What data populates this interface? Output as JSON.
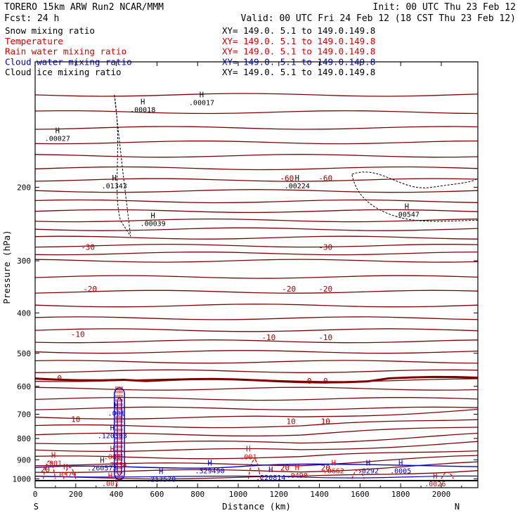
{
  "header": {
    "run_line": "TORERO  15km ARW   Run2    NCAR/MMM",
    "init_line": "Init: 00 UTC Thu 23 Feb 12",
    "fcst_line": "Fcst:    24 h",
    "valid_line": "Valid: 00 UTC Fri 24 Feb 12 (18 CST Thu 23 Feb 12)"
  },
  "legend": [
    {
      "name": "Snow mixing ratio",
      "color": "#000000",
      "xy": "XY= 149.0.   5.1 to 149.0.149.8"
    },
    {
      "name": "Temperature",
      "color": "#d00000",
      "xy": "XY= 149.0.   5.1 to 149.0.149.8"
    },
    {
      "name": "Rain water mixing ratio",
      "color": "#d00000",
      "xy": "XY= 149.0.   5.1 to 149.0.149.8"
    },
    {
      "name": "Cloud water mixing ratio",
      "color": "#0000c0",
      "xy": "XY= 149.0.   5.1 to 149.0.149.8"
    },
    {
      "name": "Cloud ice mixing ratio",
      "color": "#000000",
      "xy": "XY= 149.0.   5.1 to 149.0.149.8"
    }
  ],
  "colors": {
    "temperature": "#800000",
    "temperature_label": "#a00000",
    "rain": "#e00000",
    "cloud_water": "#0000c8",
    "snow": "#000000",
    "axis": "#000000"
  },
  "chart_data": {
    "type": "contour cross-section",
    "xlabel": "Distance (km)",
    "ylabel": "Pressure (hPa)",
    "xlim": [
      0,
      2180
    ],
    "ylim": [
      1050,
      100
    ],
    "y_scale": "log",
    "x_ticks": [
      0,
      200,
      400,
      600,
      800,
      1000,
      1200,
      1400,
      1600,
      1800,
      2000
    ],
    "y_ticks": [
      200,
      300,
      400,
      500,
      600,
      700,
      800,
      900,
      1000
    ],
    "x_end_labels": {
      "left": "S",
      "right": "N"
    },
    "temperature_contour_labels": [
      {
        "value": "-60",
        "x": 1240,
        "p": 190
      },
      {
        "value": "-60",
        "x": 1430,
        "p": 190
      },
      {
        "value": "-30",
        "x": 260,
        "p": 278
      },
      {
        "value": "-30",
        "x": 1430,
        "p": 278
      },
      {
        "value": "-20",
        "x": 270,
        "p": 350
      },
      {
        "value": "-20",
        "x": 1250,
        "p": 350
      },
      {
        "value": "-20",
        "x": 1430,
        "p": 350
      },
      {
        "value": "-10",
        "x": 210,
        "p": 450
      },
      {
        "value": "-10",
        "x": 1150,
        "p": 458
      },
      {
        "value": "-10",
        "x": 1430,
        "p": 458
      },
      {
        "value": "0",
        "x": 120,
        "p": 573
      },
      {
        "value": "0",
        "x": 1350,
        "p": 582
      },
      {
        "value": "0",
        "x": 1430,
        "p": 582
      },
      {
        "value": "10",
        "x": 200,
        "p": 719
      },
      {
        "value": "10",
        "x": 1260,
        "p": 727
      },
      {
        "value": "10",
        "x": 1430,
        "p": 727
      },
      {
        "value": "20",
        "x": 50,
        "p": 950
      },
      {
        "value": "20",
        "x": 1230,
        "p": 940
      },
      {
        "value": "20",
        "x": 1430,
        "p": 940
      }
    ],
    "maxima_labels": [
      {
        "text": "H",
        "value": ".00027",
        "x": 110,
        "p": 150,
        "color": "snow"
      },
      {
        "text": "H",
        "value": ".00018",
        "x": 530,
        "p": 128,
        "color": "snow"
      },
      {
        "text": "H",
        "value": ".00017",
        "x": 820,
        "p": 123,
        "color": "snow"
      },
      {
        "text": "H",
        "value": ".01343",
        "x": 390,
        "p": 195,
        "color": "snow"
      },
      {
        "text": "H",
        "value": ".00224",
        "x": 1290,
        "p": 195,
        "color": "snow"
      },
      {
        "text": "H",
        "value": ".00039",
        "x": 580,
        "p": 240,
        "color": "snow"
      },
      {
        "text": "H",
        "value": ".00547",
        "x": 1830,
        "p": 228,
        "color": "snow"
      },
      {
        "text": "H",
        "value": ".001",
        "x": 400,
        "p": 684,
        "color": "cloud_water"
      },
      {
        "text": "H",
        "value": ".120303",
        "x": 380,
        "p": 775,
        "color": "cloud_water"
      },
      {
        "text": "H",
        "value": ".001",
        "x": 380,
        "p": 870,
        "color": "rain"
      },
      {
        "text": "H",
        "value": ".001",
        "x": 90,
        "p": 900,
        "color": "rain"
      },
      {
        "text": "H",
        "value": ".001",
        "x": 1050,
        "p": 870,
        "color": "rain"
      },
      {
        "text": "H",
        "value": ".7034",
        "x": 400,
        "p": 910,
        "color": "rain"
      },
      {
        "text": "H",
        "value": ".260573",
        "x": 330,
        "p": 925,
        "color": "cloud_water"
      },
      {
        "text": "H",
        "value": ".0379",
        "x": 150,
        "p": 960,
        "color": "rain"
      },
      {
        "text": "H",
        "value": ".329490",
        "x": 860,
        "p": 940,
        "color": "cloud_water"
      },
      {
        "text": "H",
        "value": ".217578",
        "x": 620,
        "p": 985,
        "color": "cloud_water"
      },
      {
        "text": "H",
        "value": ".220814",
        "x": 1160,
        "p": 975,
        "color": "cloud_water"
      },
      {
        "text": "H",
        "value": ".0498",
        "x": 1290,
        "p": 965,
        "color": "rain"
      },
      {
        "text": "H",
        "value": ".0662",
        "x": 1470,
        "p": 940,
        "color": "rain"
      },
      {
        "text": "H",
        "value": ".0292",
        "x": 1640,
        "p": 940,
        "color": "cloud_water"
      },
      {
        "text": "H",
        "value": ".0005",
        "x": 1800,
        "p": 940,
        "color": "cloud_water"
      },
      {
        "text": "H",
        "value": ".001",
        "x": 370,
        "p": 1008,
        "color": "rain"
      },
      {
        "text": "H",
        "value": ".0026",
        "x": 1970,
        "p": 1010,
        "color": "rain"
      }
    ]
  }
}
